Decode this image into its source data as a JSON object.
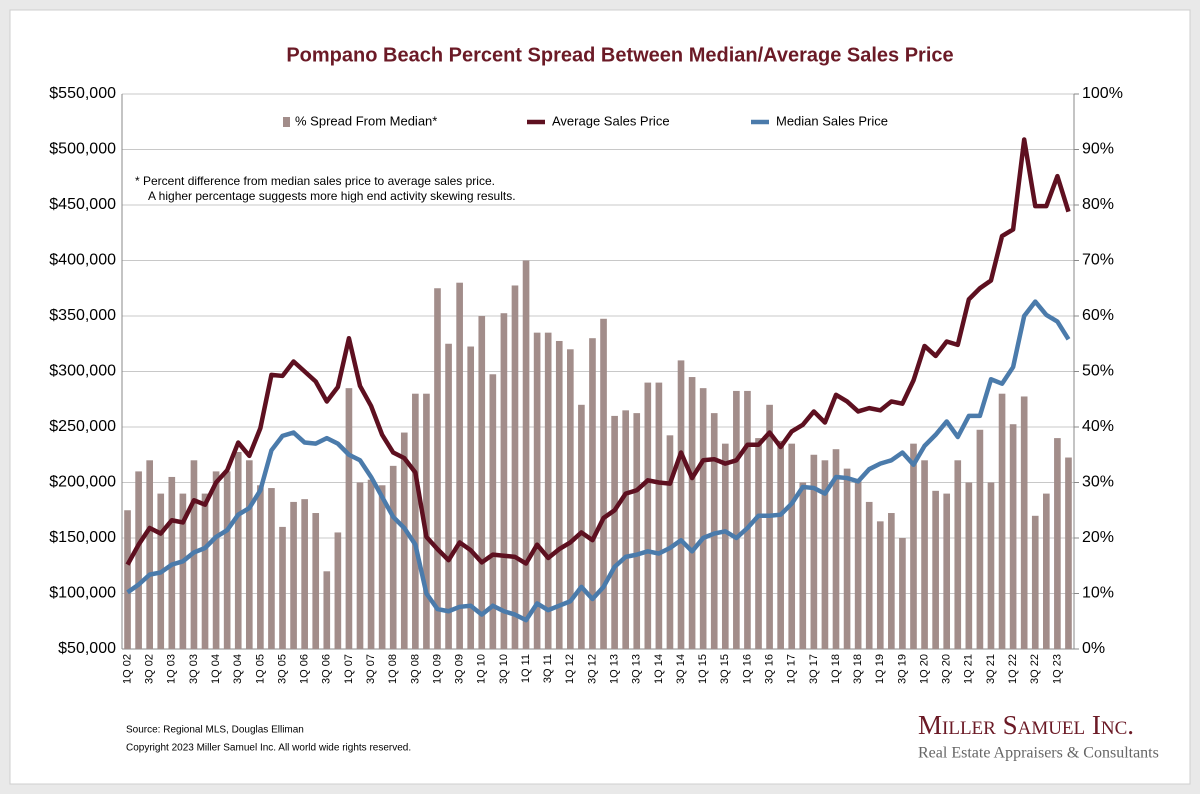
{
  "chart_data": {
    "type": "bar",
    "title": "Pompano Beach Percent Spread Between Median/Average Sales Price",
    "note": [
      "*  Percent difference from median sales price to average sales price.",
      "A higher percentage suggests more high end activity skewing results."
    ],
    "source": "Source: Regional MLS, Douglas Elliman",
    "copyright": "Copyright 2023 Miller Samuel Inc.  All world wide rights reserved.",
    "logo": {
      "name": "Miller Samuel Inc.",
      "tagline": "Real Estate Appraisers & Consultants"
    },
    "categories": [
      "1Q 02",
      null,
      "3Q 02",
      null,
      "1Q 03",
      null,
      "3Q 03",
      null,
      "1Q 04",
      null,
      "3Q 04",
      null,
      "1Q 05",
      null,
      "3Q 05",
      null,
      "1Q 06",
      null,
      "3Q 06",
      null,
      "1Q 07",
      null,
      "3Q 07",
      null,
      "1Q 08",
      null,
      "3Q 08",
      null,
      "1Q 09",
      null,
      "3Q 09",
      null,
      "1Q 10",
      null,
      "3Q 10",
      null,
      "1Q 11",
      null,
      "3Q 11",
      null,
      "1Q 12",
      null,
      "3Q 12",
      null,
      "1Q 13",
      null,
      "3Q 13",
      null,
      "1Q 14",
      null,
      "3Q 14",
      null,
      "1Q 15",
      null,
      "3Q 15",
      null,
      "1Q 16",
      null,
      "3Q 16",
      null,
      "1Q 17",
      null,
      "3Q 17",
      null,
      "1Q 18",
      null,
      "3Q 18",
      null,
      "1Q 19",
      null,
      "3Q 19",
      null,
      "1Q 20",
      null,
      "3Q 20",
      null,
      "1Q 21",
      null,
      "3Q 21",
      null,
      "1Q 22",
      null,
      "3Q 22",
      null,
      "1Q 23",
      null
    ],
    "series": [
      {
        "name": "% Spread From Median*",
        "type": "bar",
        "axis": "y2",
        "color": "#a28d8a",
        "values": [
          25,
          32,
          34,
          28,
          31,
          28,
          34,
          28,
          32,
          32,
          35.5,
          34,
          29.5,
          29,
          22,
          26.5,
          27,
          24.5,
          14,
          21,
          47,
          30,
          30.5,
          29.5,
          33,
          39,
          46,
          46,
          65,
          55,
          66,
          54.5,
          60,
          49.5,
          60.5,
          65.5,
          70,
          57,
          57,
          55.5,
          54,
          44,
          56,
          59.5,
          42,
          43,
          42.5,
          48,
          48,
          38.5,
          52,
          49,
          47,
          42.5,
          37,
          46.5,
          46.5,
          38,
          44,
          37.5,
          37,
          30,
          35,
          34,
          36,
          32.5,
          30.5,
          26.5,
          23,
          24.5,
          20,
          37,
          34,
          28.5,
          28,
          34,
          30,
          39.5,
          30,
          46,
          40.5,
          45.5,
          24,
          28,
          38,
          34.5
        ]
      },
      {
        "name": "Average Sales Price",
        "type": "line",
        "color": "#5e1020",
        "values": [
          126000,
          144000,
          159000,
          154000,
          166000,
          164000,
          184000,
          180000,
          200000,
          211000,
          236000,
          224000,
          249000,
          297000,
          296000,
          309000,
          300000,
          291000,
          273000,
          286000,
          330000,
          287000,
          269000,
          243000,
          227000,
          222000,
          209000,
          151000,
          140000,
          130000,
          146000,
          139000,
          128000,
          135000,
          134000,
          133000,
          127000,
          144000,
          132000,
          140000,
          146000,
          155000,
          148000,
          168000,
          175000,
          190000,
          193000,
          202000,
          200000,
          199000,
          227000,
          204000,
          220000,
          221000,
          217000,
          220000,
          234000,
          234000,
          245000,
          232000,
          246000,
          252000,
          264000,
          254000,
          279000,
          273000,
          264000,
          267000,
          265000,
          273000,
          271000,
          292000,
          323000,
          314000,
          327000,
          324000,
          365000,
          375000,
          382000,
          422000,
          428000,
          509000,
          449000,
          449000,
          476000,
          444000
        ]
      },
      {
        "name": "Median Sales Price",
        "type": "line",
        "color": "#4b7bab",
        "values": [
          101000,
          108000,
          117000,
          119000,
          126000,
          129000,
          137000,
          141000,
          151000,
          157000,
          171000,
          177000,
          193000,
          229000,
          242000,
          245000,
          236000,
          235000,
          240000,
          235000,
          225000,
          220000,
          205000,
          187000,
          169000,
          159000,
          144000,
          100000,
          86000,
          84000,
          88000,
          89000,
          81000,
          89000,
          84000,
          81000,
          76000,
          91000,
          85000,
          89000,
          93000,
          106000,
          95000,
          106000,
          124000,
          133000,
          135000,
          138000,
          136000,
          141000,
          148000,
          138000,
          150000,
          154000,
          156000,
          150000,
          159000,
          170000,
          170000,
          171000,
          181000,
          196000,
          195000,
          190000,
          205000,
          204000,
          201000,
          212000,
          217000,
          220000,
          227000,
          216000,
          233000,
          243000,
          255000,
          241000,
          260000,
          260000,
          293000,
          289000,
          304000,
          350000,
          363000,
          351000,
          345000,
          329000
        ]
      }
    ],
    "ylim": [
      50000,
      550000
    ],
    "yticks": [
      {
        "value": 50000,
        "label": "$50,000"
      },
      {
        "value": 100000,
        "label": "$100,000"
      },
      {
        "value": 150000,
        "label": "$150,000"
      },
      {
        "value": 200000,
        "label": "$200,000"
      },
      {
        "value": 250000,
        "label": "$250,000"
      },
      {
        "value": 300000,
        "label": "$300,000"
      },
      {
        "value": 350000,
        "label": "$350,000"
      },
      {
        "value": 400000,
        "label": "$400,000"
      },
      {
        "value": 450000,
        "label": "$450,000"
      },
      {
        "value": 500000,
        "label": "$500,000"
      },
      {
        "value": 550000,
        "label": "$550,000"
      }
    ],
    "y2lim": [
      0,
      100
    ],
    "y2ticks": [
      {
        "value": 0,
        "label": "0%"
      },
      {
        "value": 10,
        "label": "10%"
      },
      {
        "value": 20,
        "label": "20%"
      },
      {
        "value": 30,
        "label": "30%"
      },
      {
        "value": 40,
        "label": "40%"
      },
      {
        "value": 50,
        "label": "50%"
      },
      {
        "value": 60,
        "label": "60%"
      },
      {
        "value": 70,
        "label": "70%"
      },
      {
        "value": 80,
        "label": "80%"
      },
      {
        "value": 90,
        "label": "90%"
      },
      {
        "value": 100,
        "label": "100%"
      }
    ],
    "grid": true,
    "legend": "top"
  }
}
